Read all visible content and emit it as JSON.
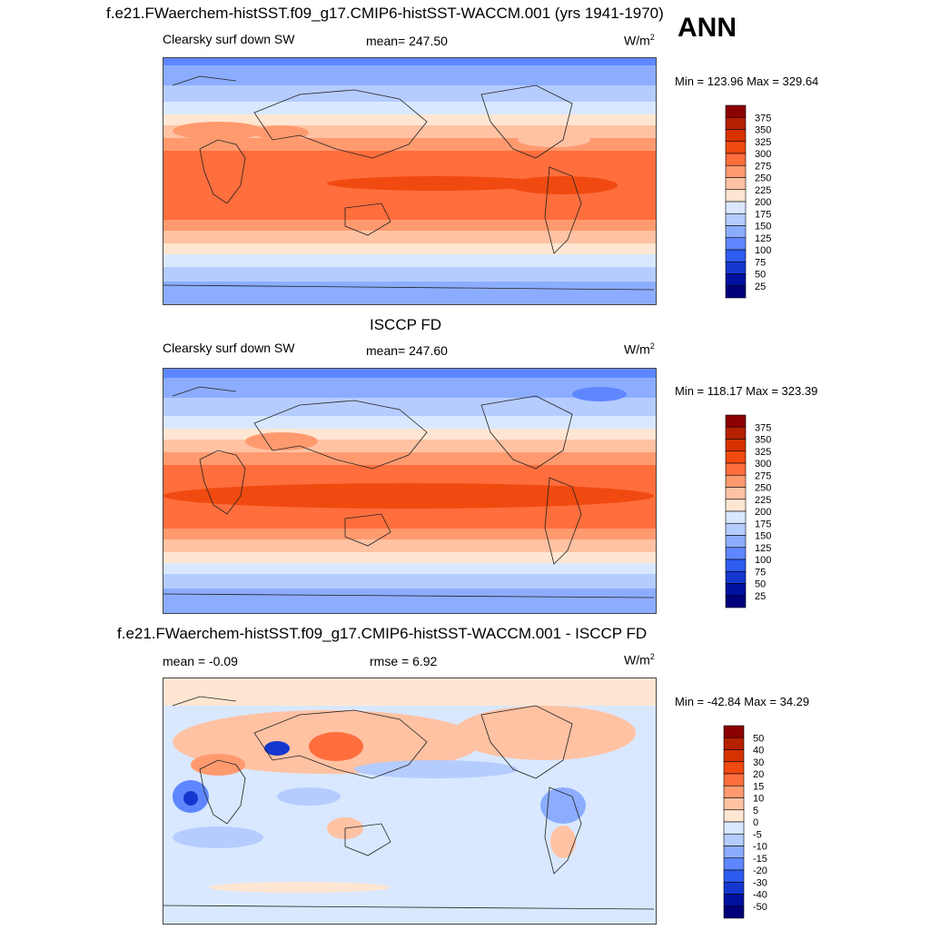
{
  "season": "ANN",
  "panels": [
    {
      "title": "f.e21.FWaerchem-histSST.f09_g17.CMIP6-histSST-WACCM.001 (yrs 1941-1970)",
      "left_label": "Clearsky surf down SW",
      "center_label": "mean= 247.50",
      "units": "W/m",
      "units_sup": "2",
      "minmax": "Min = 123.96 Max = 329.64",
      "colorbar_levels": [
        "375",
        "350",
        "325",
        "300",
        "275",
        "250",
        "225",
        "200",
        "175",
        "150",
        "125",
        "100",
        "75",
        "50",
        "25"
      ]
    },
    {
      "title": "ISCCP FD",
      "left_label": "Clearsky surf down SW",
      "center_label": "mean= 247.60",
      "units": "W/m",
      "units_sup": "2",
      "minmax": "Min = 118.17 Max = 323.39",
      "colorbar_levels": [
        "375",
        "350",
        "325",
        "300",
        "275",
        "250",
        "225",
        "200",
        "175",
        "150",
        "125",
        "100",
        "75",
        "50",
        "25"
      ]
    },
    {
      "title": "f.e21.FWaerchem-histSST.f09_g17.CMIP6-histSST-WACCM.001 - ISCCP FD",
      "left_label": "mean =  -0.09",
      "center_label": "rmse =    6.92",
      "units": "W/m",
      "units_sup": "2",
      "minmax": "Min = -42.84 Max =  34.29",
      "colorbar_levels": [
        "50",
        "40",
        "30",
        "20",
        "15",
        "10",
        "5",
        "0",
        "-5",
        "-10",
        "-15",
        "-20",
        "-30",
        "-40",
        "-50"
      ]
    }
  ],
  "colors": {
    "abs_colorbar": [
      "#8b0000",
      "#b52000",
      "#d63200",
      "#f04a10",
      "#ff6e3d",
      "#ff9a6f",
      "#ffc2a3",
      "#ffe6d2",
      "#d9e8ff",
      "#b5ccff",
      "#8cadff",
      "#5e87ff",
      "#2e5cf0",
      "#1438cf",
      "#0010a0",
      "#00007a"
    ],
    "diff_colorbar": [
      "#8b0000",
      "#b52000",
      "#d63200",
      "#f04a10",
      "#ff6e3d",
      "#ff9a6f",
      "#ffc2a3",
      "#ffe6d2",
      "#d9e8ff",
      "#b5ccff",
      "#8cadff",
      "#5e87ff",
      "#2e5cf0",
      "#1438cf",
      "#0010a0",
      "#00007a"
    ]
  }
}
